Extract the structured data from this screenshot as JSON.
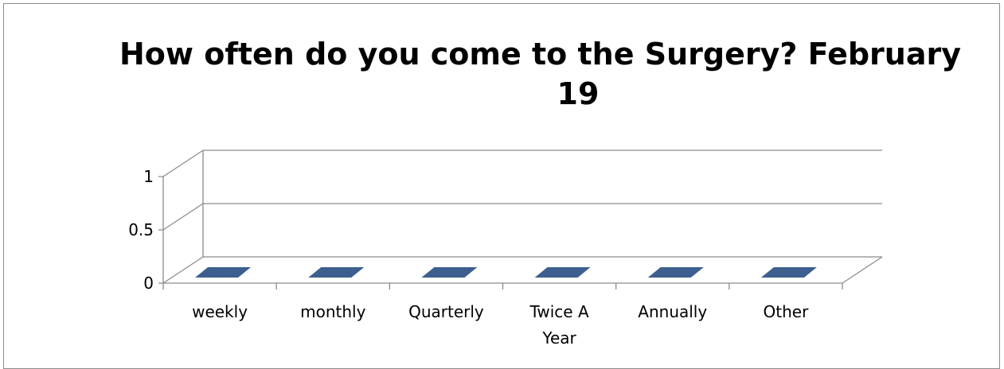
{
  "chart_data": {
    "type": "bar",
    "title_lines": [
      "How often do you come to the Surgery? February",
      "19"
    ],
    "categories": [
      [
        "weekly"
      ],
      [
        "monthly"
      ],
      [
        "Quarterly"
      ],
      [
        "Twice A",
        "Year"
      ],
      [
        "Annually"
      ],
      [
        "Other"
      ]
    ],
    "values": [
      0,
      0,
      0,
      0,
      0,
      0
    ],
    "yticks": [
      "0",
      "0.5",
      "1"
    ],
    "ylim": [
      0,
      1
    ],
    "bar_color": "#3c5f8f",
    "grid": true,
    "style": "3d-column"
  }
}
